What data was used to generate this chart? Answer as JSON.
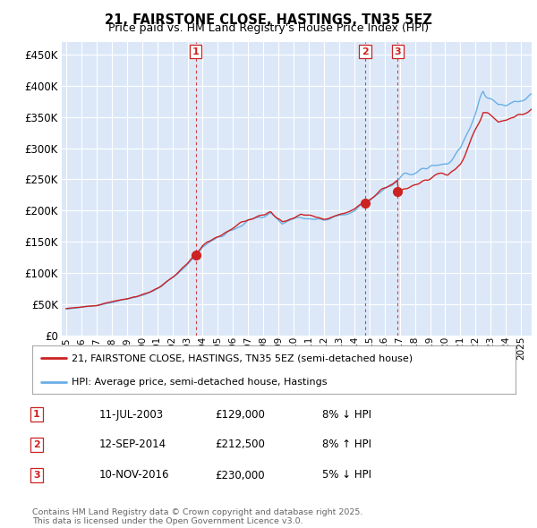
{
  "title": "21, FAIRSTONE CLOSE, HASTINGS, TN35 5EZ",
  "subtitle": "Price paid vs. HM Land Registry's House Price Index (HPI)",
  "legend_entry1": "21, FAIRSTONE CLOSE, HASTINGS, TN35 5EZ (semi-detached house)",
  "legend_entry2": "HPI: Average price, semi-detached house, Hastings",
  "transactions": [
    {
      "num": 1,
      "price": 129000,
      "x_year": 2003.53
    },
    {
      "num": 2,
      "price": 212500,
      "x_year": 2014.72
    },
    {
      "num": 3,
      "price": 230000,
      "x_year": 2016.87
    }
  ],
  "table_rows": [
    {
      "num": 1,
      "date_str": "11-JUL-2003",
      "price_str": "£129,000",
      "note": "8% ↓ HPI"
    },
    {
      "num": 2,
      "date_str": "12-SEP-2014",
      "price_str": "£212,500",
      "note": "8% ↑ HPI"
    },
    {
      "num": 3,
      "date_str": "10-NOV-2016",
      "price_str": "£230,000",
      "note": "5% ↓ HPI"
    }
  ],
  "footer": "Contains HM Land Registry data © Crown copyright and database right 2025.\nThis data is licensed under the Open Government Licence v3.0.",
  "hpi_color": "#6aafe6",
  "price_color": "#cc2222",
  "vline_color": "#cc2222",
  "background_color": "#dce8f8",
  "ylim": [
    0,
    470000
  ],
  "xlim_start": 1994.7,
  "xlim_end": 2025.7
}
